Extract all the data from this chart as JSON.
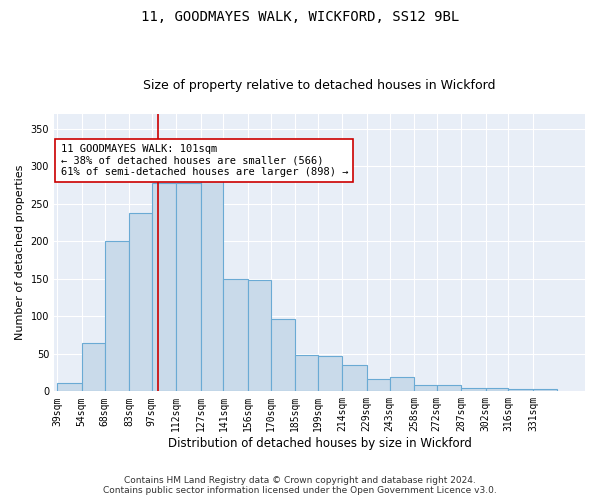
{
  "title": "11, GOODMAYES WALK, WICKFORD, SS12 9BL",
  "subtitle": "Size of property relative to detached houses in Wickford",
  "xlabel": "Distribution of detached houses by size in Wickford",
  "ylabel": "Number of detached properties",
  "categories": [
    "39sqm",
    "54sqm",
    "68sqm",
    "83sqm",
    "97sqm",
    "112sqm",
    "127sqm",
    "141sqm",
    "156sqm",
    "170sqm",
    "185sqm",
    "199sqm",
    "214sqm",
    "229sqm",
    "243sqm",
    "258sqm",
    "272sqm",
    "287sqm",
    "302sqm",
    "316sqm",
    "331sqm"
  ],
  "bar_heights": [
    11,
    64,
    200,
    238,
    278,
    278,
    292,
    150,
    148,
    97,
    48,
    47,
    35,
    17,
    19,
    8,
    8,
    5,
    5,
    3,
    3
  ],
  "bar_color": "#c9daea",
  "bar_edge_color": "#6aaad4",
  "bar_linewidth": 0.8,
  "vline_color": "#cc0000",
  "annotation_text": "11 GOODMAYES WALK: 101sqm\n← 38% of detached houses are smaller (566)\n61% of semi-detached houses are larger (898) →",
  "annotation_fontsize": 7.5,
  "annotation_box_color": "#ffffff",
  "annotation_box_edge": "#cc0000",
  "ylim": [
    0,
    370
  ],
  "yticks": [
    0,
    50,
    100,
    150,
    200,
    250,
    300,
    350
  ],
  "title_fontsize": 10,
  "subtitle_fontsize": 9,
  "xlabel_fontsize": 8.5,
  "ylabel_fontsize": 8,
  "tick_fontsize": 7,
  "footer_text": "Contains HM Land Registry data © Crown copyright and database right 2024.\nContains public sector information licensed under the Open Government Licence v3.0.",
  "bg_color": "#e8eef7",
  "grid_color": "#ffffff",
  "bin_edges": [
    39,
    54,
    68,
    83,
    97,
    112,
    127,
    141,
    156,
    170,
    185,
    199,
    214,
    229,
    243,
    258,
    272,
    287,
    302,
    316,
    331,
    346
  ]
}
